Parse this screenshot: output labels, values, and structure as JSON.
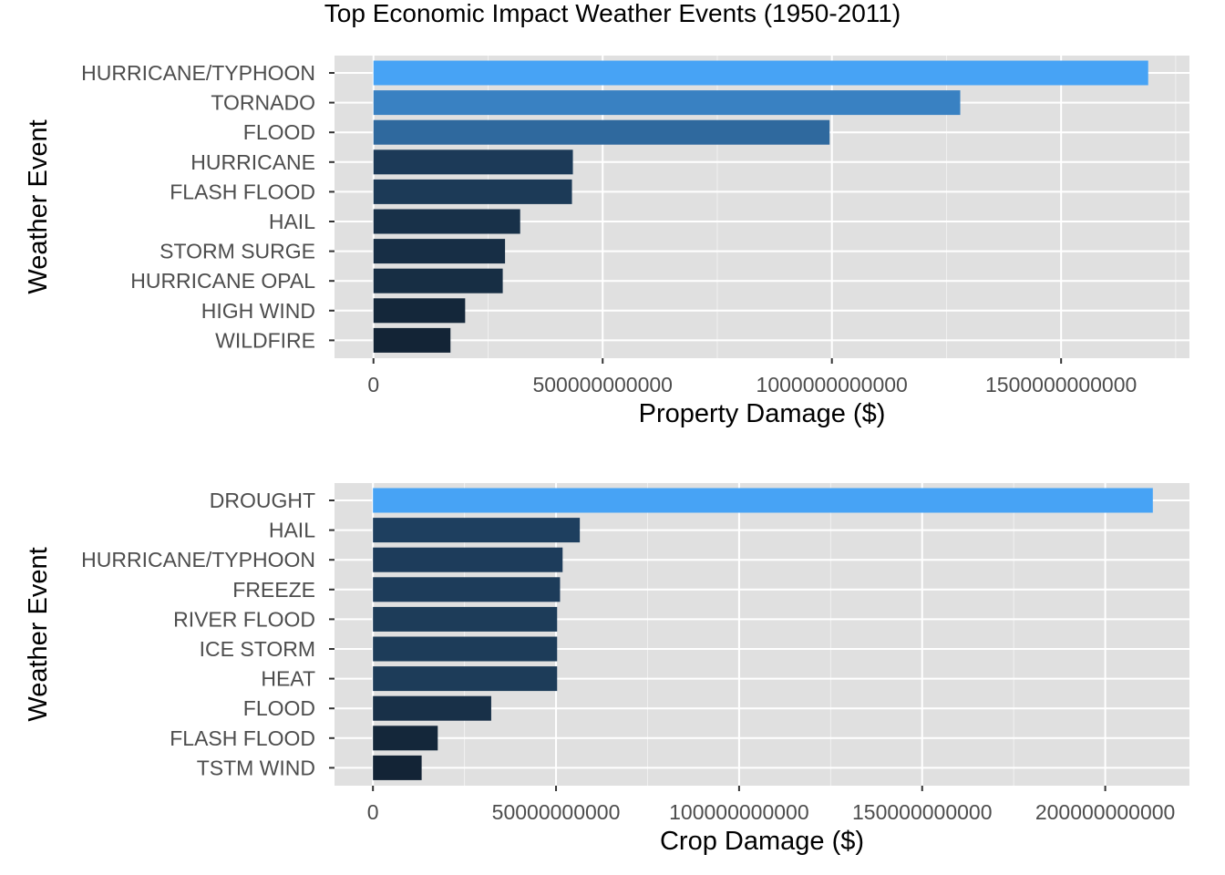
{
  "figure": {
    "title": "Top Economic Impact Weather Events (1950-2011)"
  },
  "colors": {
    "panel_background": "#e0e0e0",
    "gridline": "#ffffff",
    "tick_label": "#4d4d4d",
    "bar_low": "#132436",
    "bar_high": "#47a3f5"
  },
  "chart_data": [
    {
      "type": "bar",
      "orientation": "horizontal",
      "xlabel": "Property Damage ($)",
      "ylabel": "Weather Event",
      "xlim": [
        -85000000000,
        1780000000000
      ],
      "xticks": [
        0,
        500000000000,
        1000000000000,
        1500000000000
      ],
      "xtick_labels": [
        "0",
        "500000000000",
        "1000000000000",
        "1500000000000"
      ],
      "grid": true,
      "legend": "none",
      "categories": [
        "HURRICANE/TYPHOON",
        "TORNADO",
        "FLOOD",
        "HURRICANE",
        "FLASH FLOOD",
        "HAIL",
        "STORM SURGE",
        "HURRICANE OPAL",
        "HIGH WIND",
        "WILDFIRE"
      ],
      "values": [
        1690000000000,
        1280000000000,
        995000000000,
        435000000000,
        433000000000,
        320000000000,
        287000000000,
        282000000000,
        200000000000,
        168000000000
      ]
    },
    {
      "type": "bar",
      "orientation": "horizontal",
      "xlabel": "Crop Damage ($)",
      "ylabel": "Weather Event",
      "xlim": [
        -10500000000,
        223000000000
      ],
      "xticks": [
        0,
        50000000000,
        100000000000,
        150000000000,
        200000000000
      ],
      "xtick_labels": [
        "0",
        "50000000000",
        "100000000000",
        "150000000000",
        "200000000000"
      ],
      "grid": true,
      "legend": "none",
      "categories": [
        "DROUGHT",
        "HAIL",
        "HURRICANE/TYPHOON",
        "FREEZE",
        "RIVER FLOOD",
        "ICE STORM",
        "HEAT",
        "FLOOD",
        "FLASH FLOOD",
        "TSTM WIND"
      ],
      "values": [
        213000000000,
        56500000000,
        51800000000,
        51100000000,
        50300000000,
        50300000000,
        50300000000,
        32300000000,
        17700000000,
        13300000000
      ]
    }
  ]
}
